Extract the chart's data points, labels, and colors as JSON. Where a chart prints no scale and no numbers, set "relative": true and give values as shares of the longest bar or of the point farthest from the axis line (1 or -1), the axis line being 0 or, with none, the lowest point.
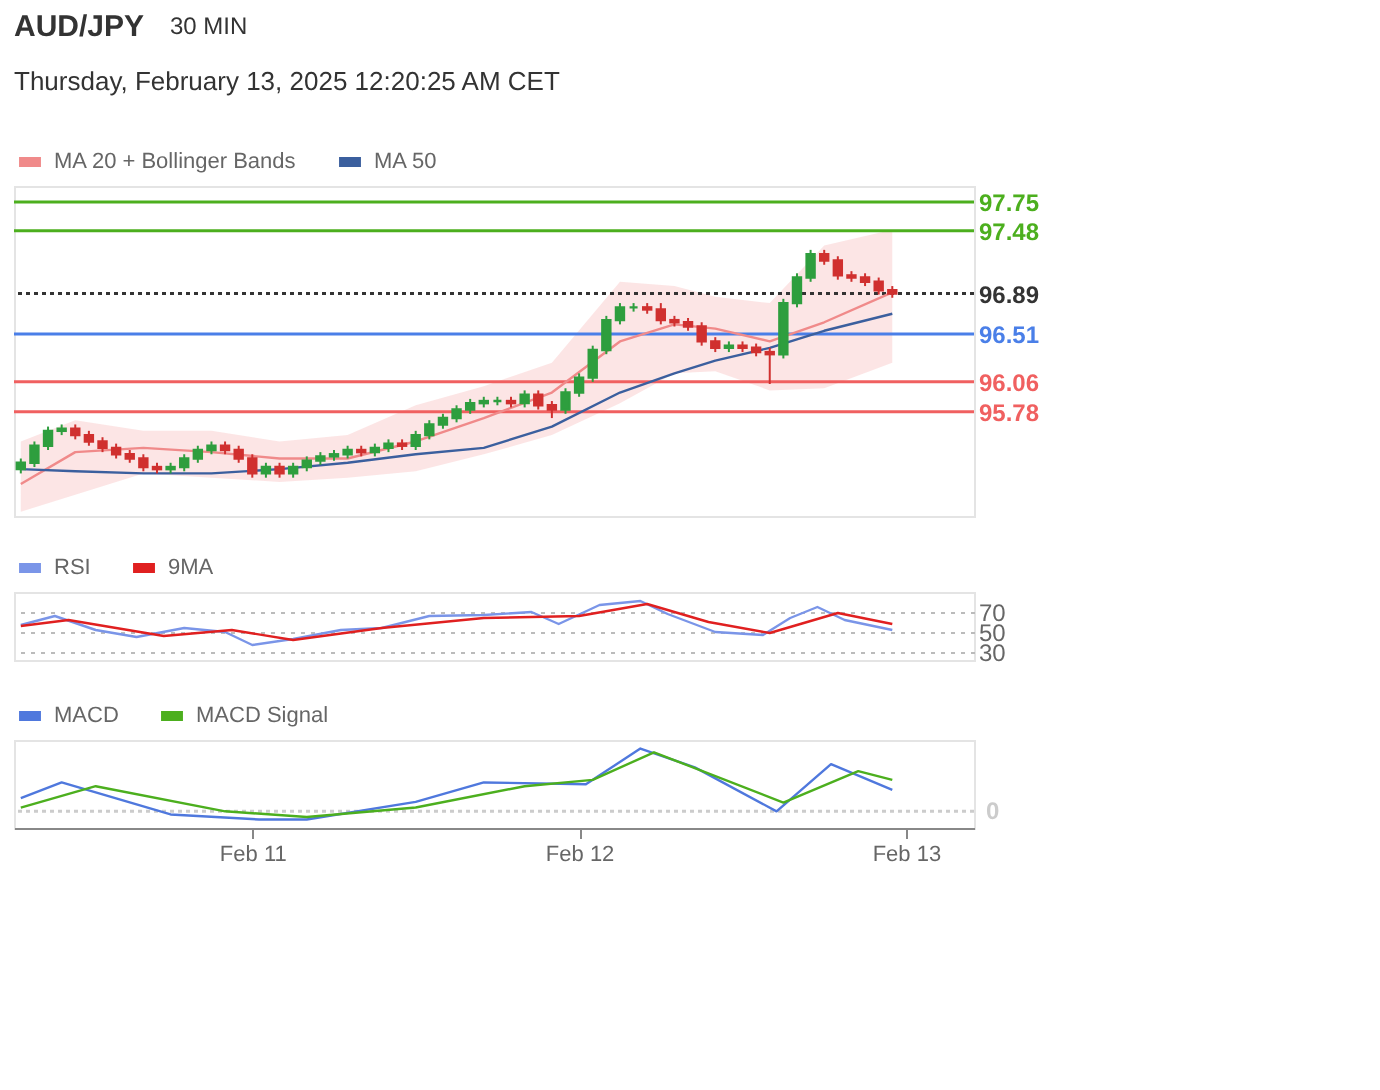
{
  "chart_data": [
    {
      "type": "candlestick",
      "title": "AUD/JPY",
      "subtitle": "Thursday, February 13, 2025 12:20:25 AM CET",
      "annotations": [
        "30 MIN"
      ],
      "x": [
        "2025-02-10T07:00",
        "2025-02-10T08:00",
        "2025-02-10T09:00",
        "2025-02-10T10:00",
        "2025-02-10T11:00",
        "2025-02-10T12:00",
        "2025-02-10T13:00",
        "2025-02-10T14:00",
        "2025-02-10T15:00",
        "2025-02-10T16:00",
        "2025-02-10T17:00",
        "2025-02-10T18:00",
        "2025-02-10T19:00",
        "2025-02-10T20:00",
        "2025-02-10T21:00",
        "2025-02-10T22:00",
        "2025-02-10T23:00",
        "2025-02-11T00:00",
        "2025-02-11T01:00",
        "2025-02-11T02:00",
        "2025-02-11T03:00",
        "2025-02-11T04:00",
        "2025-02-11T05:00",
        "2025-02-11T06:00",
        "2025-02-11T07:00",
        "2025-02-11T08:00",
        "2025-02-11T09:00",
        "2025-02-11T10:00",
        "2025-02-11T11:00",
        "2025-02-11T12:00",
        "2025-02-11T13:00",
        "2025-02-11T14:00",
        "2025-02-11T15:00",
        "2025-02-11T16:00",
        "2025-02-11T17:00",
        "2025-02-11T18:00",
        "2025-02-11T19:00",
        "2025-02-11T20:00",
        "2025-02-11T21:00",
        "2025-02-11T22:00",
        "2025-02-11T23:00",
        "2025-02-12T00:00",
        "2025-02-12T01:00",
        "2025-02-12T02:00",
        "2025-02-12T03:00",
        "2025-02-12T04:00",
        "2025-02-12T05:00",
        "2025-02-12T06:00",
        "2025-02-12T07:00",
        "2025-02-12T08:00",
        "2025-02-12T09:00",
        "2025-02-12T10:00",
        "2025-02-12T11:00",
        "2025-02-12T12:00",
        "2025-02-12T13:00",
        "2025-02-12T14:00",
        "2025-02-12T15:00",
        "2025-02-12T16:00",
        "2025-02-12T17:00",
        "2025-02-12T18:00",
        "2025-02-12T19:00",
        "2025-02-12T20:00",
        "2025-02-12T21:00",
        "2025-02-12T22:00",
        "2025-02-12T23:00"
      ],
      "ohlc": [
        [
          95.24,
          95.34,
          95.2,
          95.3
        ],
        [
          95.3,
          95.5,
          95.26,
          95.46
        ],
        [
          95.46,
          95.64,
          95.42,
          95.6
        ],
        [
          95.6,
          95.66,
          95.56,
          95.62
        ],
        [
          95.62,
          95.66,
          95.52,
          95.56
        ],
        [
          95.56,
          95.6,
          95.46,
          95.5
        ],
        [
          95.5,
          95.54,
          95.4,
          95.44
        ],
        [
          95.44,
          95.48,
          95.34,
          95.38
        ],
        [
          95.38,
          95.42,
          95.3,
          95.34
        ],
        [
          95.34,
          95.38,
          95.22,
          95.26
        ],
        [
          95.26,
          95.3,
          95.2,
          95.24
        ],
        [
          95.24,
          95.3,
          95.2,
          95.26
        ],
        [
          95.26,
          95.38,
          95.22,
          95.34
        ],
        [
          95.34,
          95.46,
          95.3,
          95.42
        ],
        [
          95.42,
          95.5,
          95.38,
          95.46
        ],
        [
          95.46,
          95.5,
          95.38,
          95.42
        ],
        [
          95.42,
          95.46,
          95.3,
          95.34
        ],
        [
          95.34,
          95.38,
          95.16,
          95.2
        ],
        [
          95.2,
          95.3,
          95.16,
          95.26
        ],
        [
          95.26,
          95.3,
          95.16,
          95.2
        ],
        [
          95.2,
          95.3,
          95.16,
          95.26
        ],
        [
          95.26,
          95.36,
          95.22,
          95.32
        ],
        [
          95.32,
          95.4,
          95.28,
          95.36
        ],
        [
          95.36,
          95.42,
          95.32,
          95.38
        ],
        [
          95.38,
          95.46,
          95.34,
          95.42
        ],
        [
          95.42,
          95.46,
          95.36,
          95.4
        ],
        [
          95.4,
          95.48,
          95.36,
          95.44
        ],
        [
          95.44,
          95.52,
          95.4,
          95.48
        ],
        [
          95.48,
          95.52,
          95.42,
          95.46
        ],
        [
          95.46,
          95.6,
          95.42,
          95.56
        ],
        [
          95.56,
          95.7,
          95.52,
          95.66
        ],
        [
          95.66,
          95.76,
          95.62,
          95.72
        ],
        [
          95.72,
          95.84,
          95.68,
          95.8
        ],
        [
          95.8,
          95.9,
          95.76,
          95.86
        ],
        [
          95.86,
          95.92,
          95.82,
          95.88
        ],
        [
          95.88,
          95.92,
          95.84,
          95.88
        ],
        [
          95.88,
          95.92,
          95.82,
          95.86
        ],
        [
          95.86,
          95.98,
          95.82,
          95.94
        ],
        [
          95.94,
          95.98,
          95.8,
          95.84
        ],
        [
          95.84,
          95.88,
          95.72,
          95.8
        ],
        [
          95.8,
          96.0,
          95.76,
          95.96
        ],
        [
          95.96,
          96.14,
          95.92,
          96.1
        ],
        [
          96.1,
          96.4,
          96.06,
          96.36
        ],
        [
          96.36,
          96.68,
          96.32,
          96.64
        ],
        [
          96.64,
          96.8,
          96.6,
          96.76
        ],
        [
          96.76,
          96.8,
          96.72,
          96.76
        ],
        [
          96.76,
          96.8,
          96.7,
          96.74
        ],
        [
          96.74,
          96.8,
          96.6,
          96.64
        ],
        [
          96.64,
          96.68,
          96.58,
          96.62
        ],
        [
          96.62,
          96.66,
          96.54,
          96.58
        ],
        [
          96.58,
          96.62,
          96.4,
          96.44
        ],
        [
          96.44,
          96.48,
          96.34,
          96.38
        ],
        [
          96.38,
          96.44,
          96.34,
          96.4
        ],
        [
          96.4,
          96.44,
          96.34,
          96.38
        ],
        [
          96.38,
          96.42,
          96.3,
          96.34
        ],
        [
          96.34,
          96.38,
          96.04,
          96.32
        ],
        [
          96.32,
          96.84,
          96.28,
          96.8
        ],
        [
          96.8,
          97.08,
          96.76,
          97.04
        ],
        [
          97.04,
          97.3,
          97.0,
          97.26
        ],
        [
          97.26,
          97.3,
          97.16,
          97.2
        ],
        [
          97.2,
          97.24,
          97.02,
          97.06
        ],
        [
          97.06,
          97.1,
          97.0,
          97.04
        ],
        [
          97.04,
          97.08,
          96.96,
          97.0
        ],
        [
          97.0,
          97.04,
          96.88,
          96.92
        ],
        [
          96.92,
          96.96,
          96.85,
          96.89
        ]
      ],
      "series": [
        {
          "name": "MA 20 + Bollinger Bands",
          "type": "line",
          "color": "#f08a8a",
          "x": [
            "2025-02-10T07:00",
            "2025-02-10T11:00",
            "2025-02-10T16:00",
            "2025-02-10T21:00",
            "2025-02-11T02:00",
            "2025-02-11T07:00",
            "2025-02-11T12:00",
            "2025-02-11T17:00",
            "2025-02-11T22:00",
            "2025-02-12T03:00",
            "2025-02-12T07:00",
            "2025-02-12T10:00",
            "2025-02-12T14:00",
            "2025-02-12T18:00",
            "2025-02-12T23:00"
          ],
          "values": [
            95.1,
            95.4,
            95.44,
            95.4,
            95.34,
            95.34,
            95.5,
            95.72,
            95.96,
            96.44,
            96.6,
            96.56,
            96.44,
            96.62,
            96.9
          ],
          "lower": [
            94.84,
            95.0,
            95.2,
            95.16,
            95.12,
            95.16,
            95.22,
            95.38,
            95.56,
            95.86,
            96.14,
            96.16,
            95.98,
            96.0,
            96.24
          ],
          "upper": [
            95.5,
            95.7,
            95.6,
            95.6,
            95.5,
            95.56,
            95.84,
            96.02,
            96.24,
            97.0,
            96.96,
            96.86,
            96.8,
            97.34,
            97.49
          ]
        },
        {
          "name": "MA 50",
          "type": "line",
          "color": "#3b5f9e",
          "x": [
            "2025-02-10T07:00",
            "2025-02-10T11:00",
            "2025-02-10T16:00",
            "2025-02-10T21:00",
            "2025-02-11T02:00",
            "2025-02-11T07:00",
            "2025-02-11T12:00",
            "2025-02-11T17:00",
            "2025-02-11T22:00",
            "2025-02-12T03:00",
            "2025-02-12T07:00",
            "2025-02-12T10:00",
            "2025-02-12T14:00",
            "2025-02-12T18:00",
            "2025-02-12T23:00"
          ],
          "values": [
            95.24,
            95.22,
            95.2,
            95.2,
            95.24,
            95.3,
            95.38,
            95.44,
            95.64,
            95.96,
            96.14,
            96.26,
            96.38,
            96.54,
            96.7
          ]
        }
      ],
      "ref_lines": [
        {
          "axis": "y",
          "value": 97.75,
          "color": "#4caf1e"
        },
        {
          "axis": "y",
          "value": 97.48,
          "color": "#4caf1e"
        },
        {
          "axis": "y",
          "value": 96.89,
          "color": "#333333",
          "line_style": "dotted"
        },
        {
          "axis": "y",
          "value": 96.51,
          "color": "#4a7fe8"
        },
        {
          "axis": "y",
          "value": 96.06,
          "color": "#f06060"
        },
        {
          "axis": "y",
          "value": 95.78,
          "color": "#f06060"
        }
      ],
      "xlim": [
        "2025-02-10T06:30",
        "2025-02-13T05:00"
      ],
      "ylim": [
        94.8,
        97.9
      ],
      "yticks": [
        97.75,
        97.48,
        96.89,
        96.51,
        96.06,
        95.78
      ],
      "tick_labels": "y",
      "legend": "top left",
      "grid": false
    },
    {
      "type": "line",
      "series": [
        {
          "name": "RSI",
          "color": "#7a95e8",
          "x": [
            "2025-02-10T07:00",
            "2025-02-10T09:30",
            "2025-02-10T12:30",
            "2025-02-10T15:30",
            "2025-02-10T19:00",
            "2025-02-10T22:00",
            "2025-02-11T00:00",
            "2025-02-11T03:00",
            "2025-02-11T06:30",
            "2025-02-11T09:30",
            "2025-02-11T13:00",
            "2025-02-11T17:00",
            "2025-02-11T20:30",
            "2025-02-11T22:30",
            "2025-02-12T01:30",
            "2025-02-12T04:30",
            "2025-02-12T06:30",
            "2025-02-12T10:00",
            "2025-02-12T13:30",
            "2025-02-12T15:30",
            "2025-02-12T17:30",
            "2025-02-12T19:30",
            "2025-02-12T23:00"
          ],
          "values": [
            57,
            66,
            52,
            45,
            54,
            50,
            37,
            43,
            52,
            54,
            66,
            67,
            70,
            58,
            77,
            81,
            68,
            50,
            47,
            64,
            75,
            62,
            52
          ]
        },
        {
          "name": "9MA",
          "color": "#e02020",
          "x": [
            "2025-02-10T07:00",
            "2025-02-10T10:30",
            "2025-02-10T17:30",
            "2025-02-10T22:30",
            "2025-02-11T03:00",
            "2025-02-11T09:30",
            "2025-02-11T17:00",
            "2025-02-12T00:00",
            "2025-02-12T05:00",
            "2025-02-12T09:30",
            "2025-02-12T14:00",
            "2025-02-12T19:00",
            "2025-02-12T23:00"
          ],
          "values": [
            56,
            62,
            46,
            52,
            42,
            54,
            64,
            66,
            78,
            60,
            49,
            69,
            58
          ]
        }
      ],
      "xlim": [
        "2025-02-10T06:30",
        "2025-02-13T05:00"
      ],
      "ylim": [
        22,
        90
      ],
      "yticks": [
        70,
        50,
        30
      ],
      "grid": "y",
      "tick_labels": "y",
      "legend": "top left"
    },
    {
      "type": "line",
      "relative": true,
      "series": [
        {
          "name": "MACD",
          "color": "#4f78dd",
          "x": [
            "2025-02-10T07:00",
            "2025-02-10T10:00",
            "2025-02-10T18:00",
            "2025-02-11T00:30",
            "2025-02-11T04:00",
            "2025-02-11T12:00",
            "2025-02-11T17:00",
            "2025-02-12T00:30",
            "2025-02-12T04:30",
            "2025-02-12T08:30",
            "2025-02-12T14:30",
            "2025-02-12T18:30",
            "2025-02-12T23:00"
          ],
          "values": [
            0.21,
            0.46,
            -0.05,
            -0.13,
            -0.13,
            0.15,
            0.46,
            0.43,
            1,
            0.7,
            0,
            0.75,
            0.34
          ]
        },
        {
          "name": "MACD Signal",
          "color": "#4caf1e",
          "x": [
            "2025-02-10T07:00",
            "2025-02-10T12:30",
            "2025-02-10T22:00",
            "2025-02-11T04:00",
            "2025-02-11T12:00",
            "2025-02-11T20:00",
            "2025-02-12T01:00",
            "2025-02-12T05:30",
            "2025-02-12T15:00",
            "2025-02-12T20:30",
            "2025-02-12T23:00"
          ],
          "values": [
            0.06,
            0.4,
            0,
            -0.09,
            0.06,
            0.4,
            0.5,
            0.94,
            0.14,
            0.64,
            0.5
          ]
        }
      ],
      "ref_lines": [
        {
          "axis": "y",
          "value": 0,
          "label": "0",
          "color": "#cccccc",
          "line_style": "dotted"
        }
      ],
      "xlim": [
        "2025-02-10T06:30",
        "2025-02-13T05:00"
      ],
      "xticks": [
        {
          "value": "2025-02-11T00:00",
          "label": "Feb 11"
        },
        {
          "value": "2025-02-12T00:00",
          "label": "Feb 12"
        },
        {
          "value": "2025-02-13T00:00",
          "label": "Feb 13"
        }
      ],
      "tick_labels": "x",
      "legend": "top left",
      "grid": false
    }
  ]
}
